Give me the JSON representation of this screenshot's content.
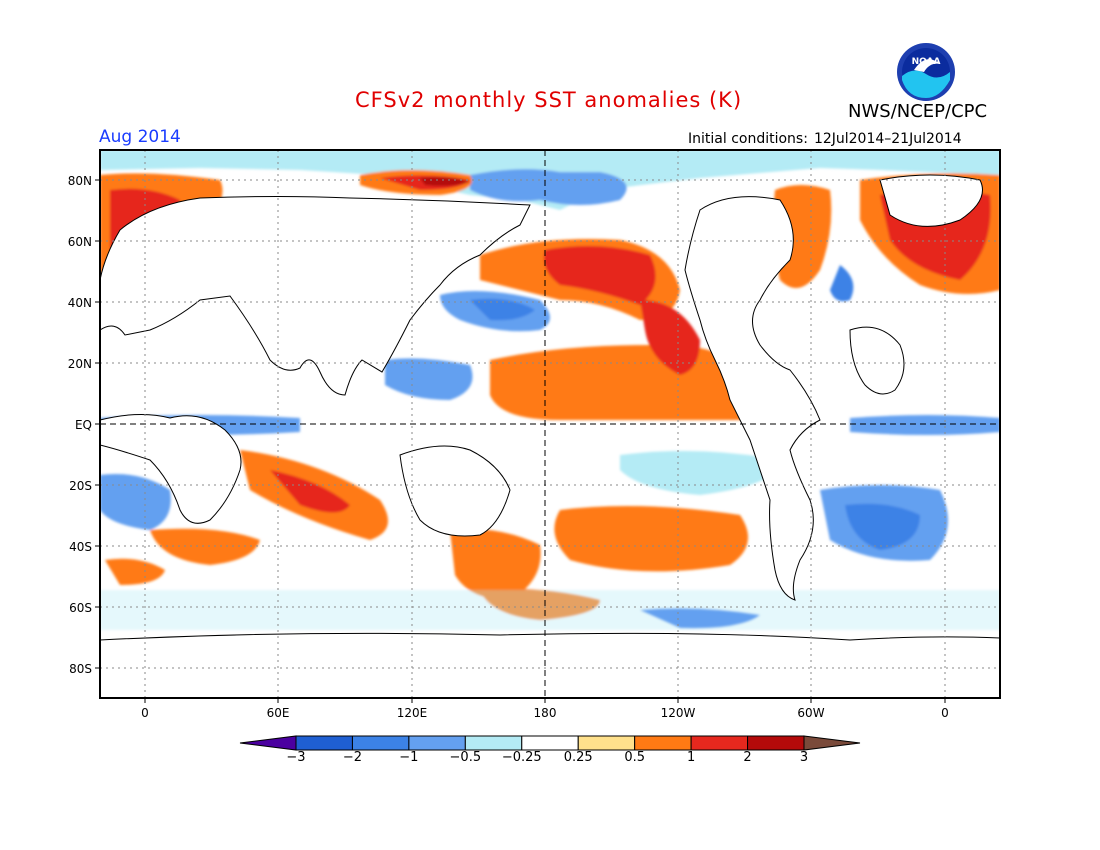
{
  "title": "CFSv2 monthly SST anomalies (K)",
  "agency": "NWS/NCEP/CPC",
  "logo_text": "NOAA",
  "month": "Aug 2014",
  "initial_conditions": {
    "label": "Initial conditions:",
    "value": "12Jul2014–21Jul2014"
  },
  "lat_labels": [
    "80N",
    "60N",
    "40N",
    "20N",
    "EQ",
    "20S",
    "40S",
    "60S",
    "80S"
  ],
  "lon_labels": [
    "0",
    "60E",
    "120E",
    "180",
    "120W",
    "60W",
    "0"
  ],
  "colorbar": {
    "labels": [
      "−3",
      "−2",
      "−1",
      "−0.5",
      "−0.25",
      "0.25",
      "0.5",
      "1",
      "2",
      "3"
    ],
    "colors": [
      "#4b00a0",
      "#1f5fd2",
      "#3c82e6",
      "#64a0f0",
      "#b4ebf5",
      "#ffffff",
      "#ffe18c",
      "#ff7a14",
      "#e6281e",
      "#b40a0a",
      "#7a4a3a"
    ]
  },
  "colors": {
    "title": "#e00000",
    "month": "#1a3cff"
  }
}
